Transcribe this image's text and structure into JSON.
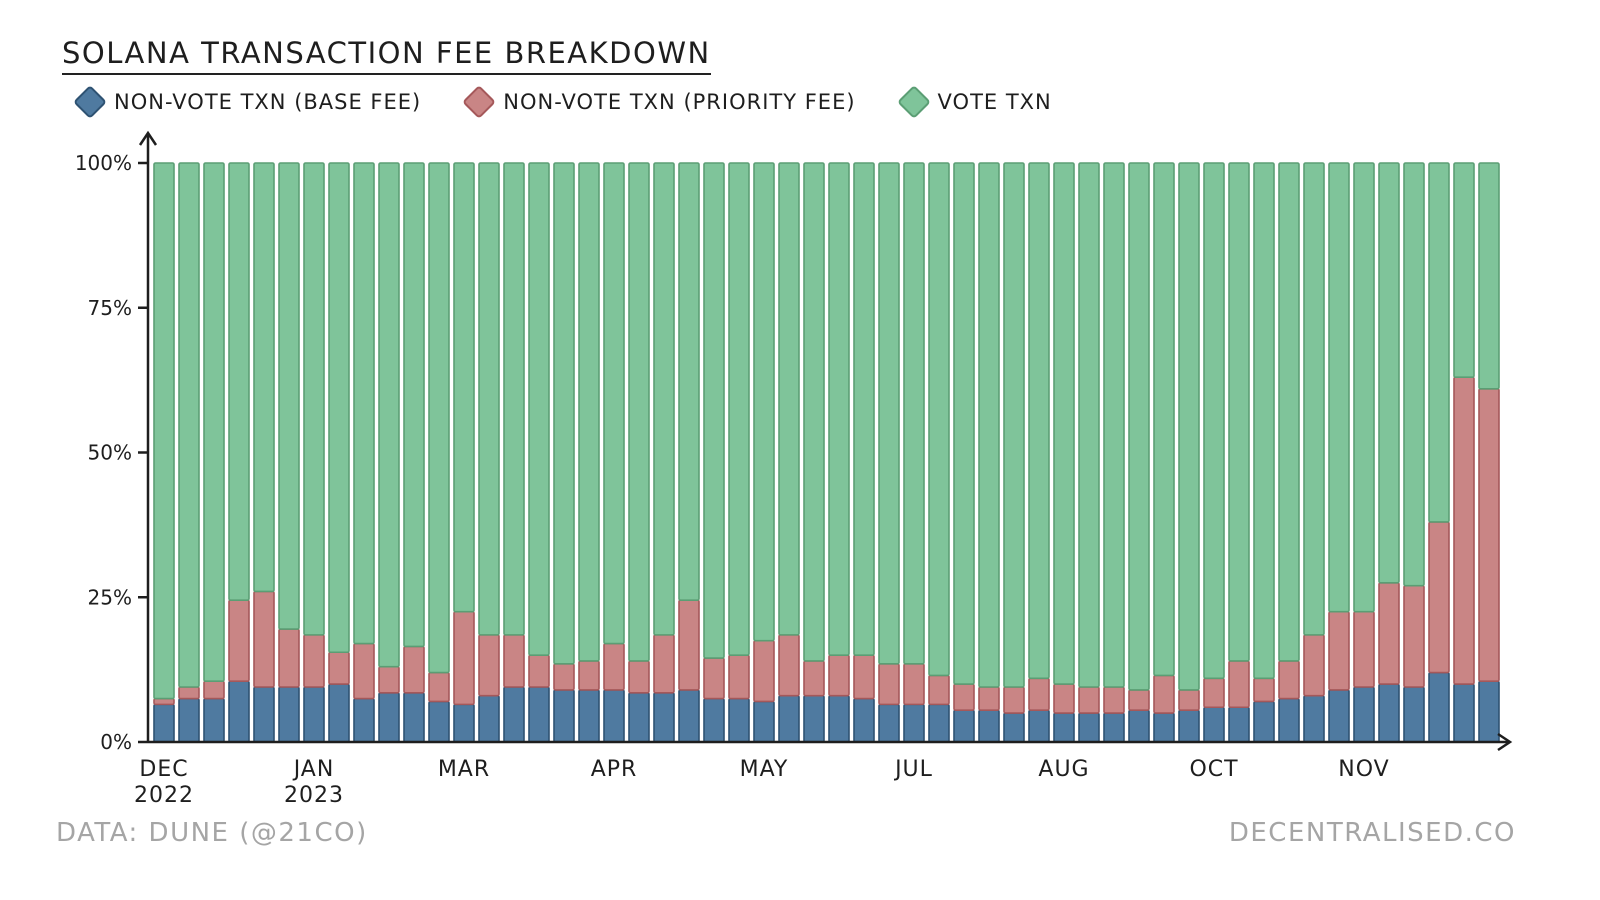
{
  "title": "SOLANA TRANSACTION FEE BREAKDOWN",
  "legend": [
    {
      "label": "NON-VOTE TXN (BASE FEE)",
      "icon": "diamond-swatch-blue"
    },
    {
      "label": "NON-VOTE TXN (PRIORITY FEE)",
      "icon": "diamond-swatch-red"
    },
    {
      "label": "VOTE TXN",
      "icon": "diamond-swatch-green"
    }
  ],
  "source": "DATA: DUNE (@21CO)",
  "brand": "DECENTRALISED.CO",
  "colors": {
    "base_fill": "#4f7aa0",
    "base_stroke": "#2e5272",
    "priority_fill": "#c98585",
    "priority_stroke": "#a5585a",
    "vote_fill": "#7fc49a",
    "vote_stroke": "#5b9e74",
    "axis": "#1e1e1e"
  },
  "chart_data": {
    "type": "bar",
    "stacked": true,
    "title": "SOLANA TRANSACTION FEE BREAKDOWN",
    "xlabel": "",
    "ylabel": "",
    "ylim": [
      0,
      100
    ],
    "yticks": [
      {
        "value": 0,
        "label": "0%"
      },
      {
        "value": 25,
        "label": "25%"
      },
      {
        "value": 50,
        "label": "50%"
      },
      {
        "value": 75,
        "label": "75%"
      },
      {
        "value": 100,
        "label": "100%"
      }
    ],
    "month_labels": [
      {
        "label": "DEC",
        "sub": "2022",
        "bar_index": 0
      },
      {
        "label": "JAN",
        "sub": "2023",
        "bar_index": 6
      },
      {
        "label": "MAR",
        "sub": "",
        "bar_index": 12
      },
      {
        "label": "APR",
        "sub": "",
        "bar_index": 18
      },
      {
        "label": "MAY",
        "sub": "",
        "bar_index": 24
      },
      {
        "label": "JUL",
        "sub": "",
        "bar_index": 30
      },
      {
        "label": "AUG",
        "sub": "",
        "bar_index": 36
      },
      {
        "label": "OCT",
        "sub": "",
        "bar_index": 42
      },
      {
        "label": "NOV",
        "sub": "",
        "bar_index": 48
      }
    ],
    "series": [
      {
        "name": "NON-VOTE TXN (BASE FEE)",
        "values": [
          6.5,
          7.5,
          7.5,
          10.5,
          9.5,
          9.5,
          9.5,
          10,
          7.5,
          8.5,
          8.5,
          7,
          6.5,
          8,
          9.5,
          9.5,
          9,
          9,
          9,
          8.5,
          8.5,
          9,
          7.5,
          7.5,
          7,
          8,
          8,
          8,
          7.5,
          6.5,
          6.5,
          6.5,
          5.5,
          5.5,
          5,
          5.5,
          5,
          5,
          5,
          5.5,
          5,
          5.5,
          6,
          6,
          7,
          7.5,
          8,
          9,
          9.5,
          10,
          9.5,
          12,
          10,
          10.5
        ]
      },
      {
        "name": "NON-VOTE TXN (PRIORITY FEE)",
        "values": [
          1,
          2,
          3,
          14,
          16.5,
          10,
          9,
          5.5,
          9.5,
          4.5,
          8,
          5,
          16,
          10.5,
          9,
          5.5,
          4.5,
          5,
          8,
          5.5,
          10,
          15.5,
          7,
          7.5,
          10.5,
          10.5,
          6,
          7,
          7.5,
          7,
          7,
          5,
          4.5,
          4,
          4.5,
          5.5,
          5,
          4.5,
          4.5,
          3.5,
          6.5,
          3.5,
          5,
          8,
          4,
          6.5,
          10.5,
          13.5,
          13,
          17.5,
          17.5,
          26,
          53,
          50.5
        ]
      },
      {
        "name": "VOTE TXN",
        "values": [
          92.5,
          90.5,
          89.5,
          75.5,
          74,
          80.5,
          81.5,
          84.5,
          83,
          87,
          83.5,
          88,
          77.5,
          81.5,
          81.5,
          85,
          86.5,
          86,
          83,
          86,
          81.5,
          75.5,
          85.5,
          85,
          82.5,
          81.5,
          86,
          85,
          85,
          86.5,
          86.5,
          88.5,
          90,
          90.5,
          90.5,
          89,
          90,
          90.5,
          90.5,
          91,
          88.5,
          91,
          89,
          86,
          89,
          86,
          81.5,
          77.5,
          77.5,
          72.5,
          73,
          62,
          37,
          39
        ]
      }
    ]
  }
}
